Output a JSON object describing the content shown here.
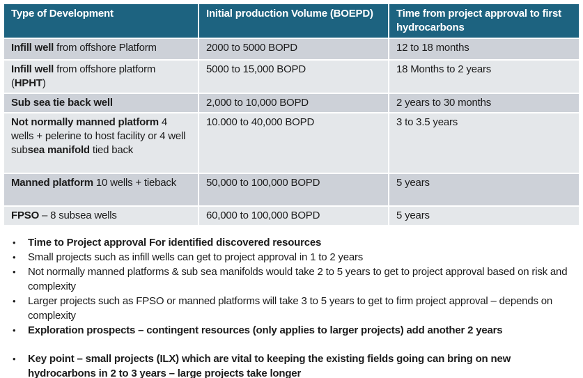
{
  "colors": {
    "header_bg": "#1d6380",
    "row_odd_bg": "#cdd1d8",
    "row_even_bg": "#e4e7ea",
    "text": "#1c1c1c",
    "header_text": "#ffffff"
  },
  "table": {
    "headers": [
      "Type of Development",
      "Initial production Volume (BOEPD)",
      "Time from project approval to first hydrocarbons"
    ],
    "rows": [
      {
        "cells": [
          [
            {
              "t": "Infill well",
              "b": true
            },
            {
              "t": " from offshore Platform"
            }
          ],
          [
            {
              "t": "2000 to 5000 BOPD"
            }
          ],
          [
            {
              "t": "12 to 18 months"
            }
          ]
        ]
      },
      {
        "cells": [
          [
            {
              "t": "Infill well",
              "b": true
            },
            {
              "t": " from offshore platform ("
            },
            {
              "t": "HPHT",
              "b": true
            },
            {
              "t": ")"
            }
          ],
          [
            {
              "t": "5000 to 15,000 BOPD"
            }
          ],
          [
            {
              "t": "18 Months to 2 years"
            }
          ]
        ]
      },
      {
        "cells": [
          [
            {
              "t": "Sub sea tie back well",
              "b": true
            }
          ],
          [
            {
              "t": "2,000 to 10,000 BOPD"
            }
          ],
          [
            {
              "t": "2 years to 30 months"
            }
          ]
        ]
      },
      {
        "cells": [
          [
            {
              "t": "Not normally manned platform",
              "b": true
            },
            {
              "t": " 4 wells + pelerine to host facility or 4 well sub"
            },
            {
              "t": "sea manifold",
              "b": true
            },
            {
              "t": " tied back"
            }
          ],
          [
            {
              "t": "10.000 to 40,000 BOPD"
            }
          ],
          [
            {
              "t": "3 to 3.5 years"
            }
          ]
        ]
      },
      {
        "cells": [
          [
            {
              "t": "Manned platform",
              "b": true
            },
            {
              "t": " 10 wells + tieback"
            }
          ],
          [
            {
              "t": "50,000 to 100,000 BOPD"
            }
          ],
          [
            {
              "t": "5 years"
            }
          ]
        ]
      },
      {
        "cells": [
          [
            {
              "t": "FPSO",
              "b": true
            },
            {
              "t": " – 8 subsea wells"
            }
          ],
          [
            {
              "t": "60,000 to 100,000 BOPD"
            }
          ],
          [
            {
              "t": "5 years"
            }
          ]
        ]
      }
    ]
  },
  "bullets": {
    "groups": [
      {
        "items": [
          {
            "text": "Time to Project approval For identified discovered resources",
            "bold": true
          },
          {
            "text": "Small projects such as infill wells can get to project approval in 1 to 2 years",
            "bold": false
          },
          {
            "text": "Not normally manned platforms & sub sea manifolds would take 2 to 5 years to get to project approval based on risk and complexity",
            "bold": false
          },
          {
            "text": "Larger projects such as FPSO or manned platforms will take 3 to 5 years to get to firm project approval – depends on complexity",
            "bold": false
          },
          {
            "text": "Exploration prospects – contingent resources (only applies to larger projects) add another 2 years",
            "bold": true
          }
        ]
      },
      {
        "items": [
          {
            "text": "Key point – small projects (ILX) which are vital to keeping the existing fields going can bring on new hydrocarbons in 2 to 3 years – large projects take longer",
            "bold": true
          }
        ]
      }
    ]
  }
}
